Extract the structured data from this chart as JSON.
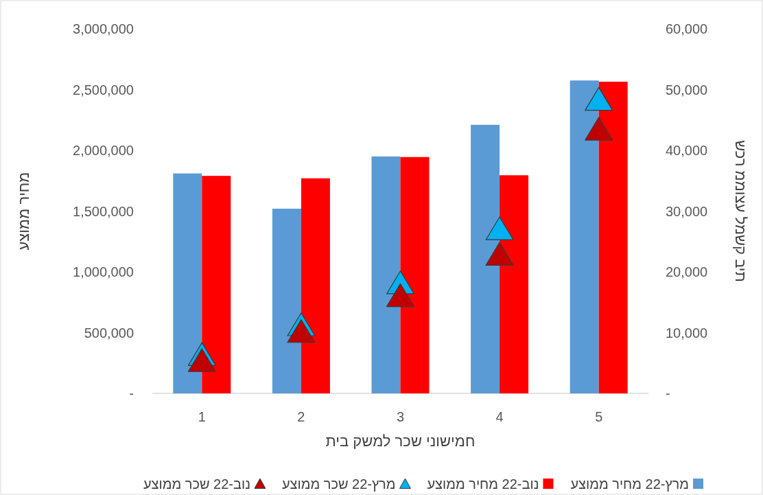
{
  "chart_data": {
    "type": "bar",
    "xlabel": "חמישוני שכר למשק בית",
    "ylabel": "מחיר ממוצע",
    "y2label": "שכר ממוצע למשק בית",
    "categories": [
      "1",
      "2",
      "3",
      "4",
      "5"
    ],
    "series": [
      {
        "name": "מרץ-22 מחיר ממוצע",
        "color": "#5b9bd5",
        "values": [
          1810000,
          1520000,
          1950000,
          2210000,
          2575000
        ]
      },
      {
        "name": "נוב-22 מחיר ממוצע",
        "color": "#ff0000",
        "values": [
          1790000,
          1770000,
          1945000,
          1795000,
          2565000
        ]
      },
      {
        "name": "מרץ-22 שכר ממוצע",
        "type": "scatter",
        "axis": "y2",
        "marker": "triangle",
        "color": "#00b0f0",
        "values": [
          6200,
          11100,
          18000,
          26900,
          48200
        ]
      },
      {
        "name": "נוב-22 שכר ממוצע",
        "type": "scatter",
        "axis": "y2",
        "marker": "triangle",
        "color": "#c00000",
        "values": [
          5200,
          10000,
          15900,
          22700,
          43300
        ]
      }
    ],
    "ylim": [
      0,
      3000000
    ],
    "yticks": [
      {
        "value": 0,
        "label": "-"
      },
      {
        "value": 500000,
        "label": "500,000"
      },
      {
        "value": 1000000,
        "label": "1,000,000"
      },
      {
        "value": 1500000,
        "label": "1,500,000"
      },
      {
        "value": 2000000,
        "label": "2,000,000"
      },
      {
        "value": 2500000,
        "label": "2,500,000"
      },
      {
        "value": 3000000,
        "label": "3,000,000"
      }
    ],
    "y2lim": [
      0,
      60000
    ],
    "y2ticks": [
      {
        "value": 0,
        "label": "-"
      },
      {
        "value": 10000,
        "label": "10,000"
      },
      {
        "value": 20000,
        "label": "20,000"
      },
      {
        "value": 30000,
        "label": "30,000"
      },
      {
        "value": 40000,
        "label": "40,000"
      },
      {
        "value": 50000,
        "label": "50,000"
      },
      {
        "value": 60000,
        "label": "60,000"
      }
    ],
    "legend": "bottom"
  }
}
